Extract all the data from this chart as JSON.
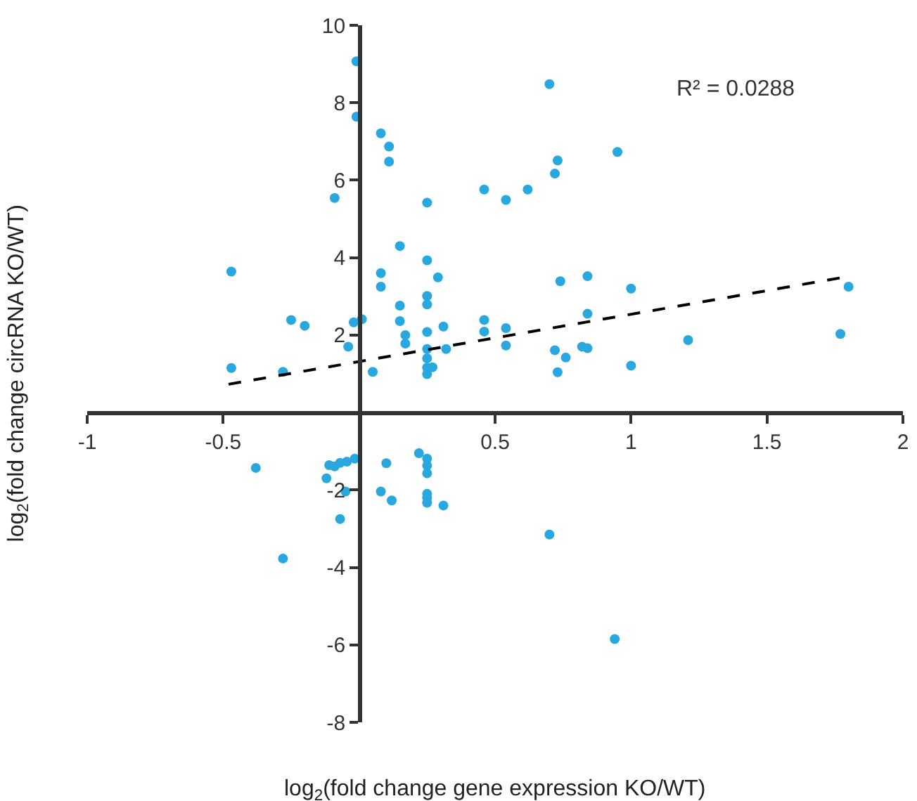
{
  "chart_data": {
    "type": "scatter",
    "xlabel": "log$_{2}$(fold change gene expression KO/WT)",
    "ylabel": "log$_{2}$(fold change circRNA KO/WT)",
    "annotations": [
      "R² = 0.0288"
    ],
    "xlim": [
      -1,
      2
    ],
    "xticks": [
      -1,
      -0.5,
      0.5,
      1,
      1.5,
      2
    ],
    "ylim": [
      -8,
      10
    ],
    "yticks": [
      -8,
      -6,
      -4,
      -2,
      2,
      4,
      6,
      8,
      10
    ],
    "grid": false,
    "marker": "circle",
    "series": [
      {
        "color": "#29a8e0",
        "x": [
          -0.47,
          -0.47,
          -0.28,
          -0.25,
          -0.2,
          -0.09,
          -0.04,
          -0.02,
          0.01,
          -0.01,
          -0.01,
          0.08,
          0.11,
          0.11,
          0.05,
          0.08,
          0.08,
          0.15,
          0.15,
          0.15,
          0.17,
          0.17,
          0.25,
          0.25,
          0.25,
          0.25,
          0.25,
          0.25,
          0.25,
          0.25,
          0.27,
          0.25,
          0.29,
          0.31,
          0.32,
          0.46,
          0.46,
          0.46,
          0.54,
          0.54,
          0.54,
          0.62,
          0.7,
          0.73,
          0.72,
          0.95,
          0.74,
          0.84,
          1.0,
          0.84,
          0.72,
          0.76,
          0.73,
          0.82,
          0.84,
          1.0,
          1.21,
          1.77,
          1.8,
          -0.38,
          -0.11,
          -0.09,
          -0.07,
          -0.045,
          -0.016,
          -0.12,
          -0.05,
          -0.07,
          -0.28,
          0.1,
          0.08,
          0.12,
          0.22,
          0.25,
          0.25,
          0.25,
          0.25,
          0.25,
          0.25,
          0.31,
          0.7,
          0.94
        ],
        "values": [
          3.64,
          1.15,
          1.05,
          2.39,
          2.24,
          5.54,
          1.7,
          2.33,
          2.41,
          9.07,
          7.64,
          7.21,
          6.87,
          6.48,
          1.05,
          3.6,
          3.25,
          4.3,
          2.76,
          2.36,
          2.0,
          1.78,
          5.42,
          3.93,
          3.01,
          2.79,
          2.08,
          1.64,
          1.4,
          1.16,
          1.17,
          0.99,
          3.49,
          2.22,
          1.64,
          5.76,
          2.39,
          2.09,
          5.49,
          2.18,
          1.73,
          5.76,
          8.48,
          6.51,
          6.17,
          6.73,
          3.39,
          3.52,
          3.2,
          2.55,
          1.61,
          1.42,
          1.04,
          1.7,
          1.66,
          1.21,
          1.87,
          2.03,
          3.25,
          -1.43,
          -1.36,
          -1.39,
          -1.3,
          -1.27,
          -1.19,
          -1.7,
          -2.04,
          -2.75,
          -3.77,
          -1.31,
          -2.04,
          -2.27,
          -1.05,
          -1.19,
          -1.37,
          -1.57,
          -2.1,
          -2.2,
          -2.33,
          -2.4,
          -3.15,
          -5.85
        ]
      },
      {
        "type": "line",
        "color": "#000000",
        "line_style": "dashed",
        "marker": "none",
        "x": [
          -0.48,
          1.78
        ],
        "values": [
          0.73,
          3.49
        ]
      }
    ]
  }
}
